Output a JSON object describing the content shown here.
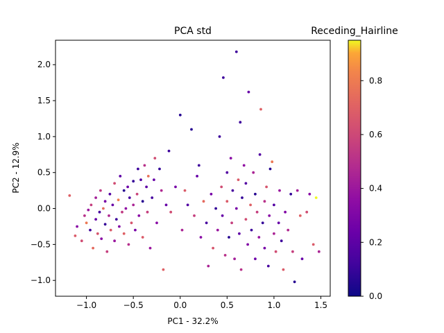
{
  "chart_data": {
    "type": "scatter",
    "title": "PCA std",
    "colorbar_label": "Receding_Hairline",
    "xlabel": "PC1 - 32.2%",
    "ylabel": "PC2 - 12.9%",
    "xlim": [
      -1.33,
      1.6
    ],
    "ylim": [
      -1.22,
      2.34
    ],
    "xticks": [
      -1.0,
      -0.5,
      0.0,
      0.5,
      1.0,
      1.5
    ],
    "xtick_labels": [
      "−1.0",
      "−0.5",
      "0.0",
      "0.5",
      "1.0",
      "1.5"
    ],
    "yticks": [
      -1.0,
      -0.5,
      0.0,
      0.5,
      1.0,
      1.5,
      2.0
    ],
    "ytick_labels": [
      "−1.0",
      "−0.5",
      "0.0",
      "0.5",
      "1.0",
      "1.5",
      "2.0"
    ],
    "colorbar_range": [
      0.0,
      0.95
    ],
    "colorbar_ticks": [
      0.0,
      0.2,
      0.4,
      0.6,
      0.8
    ],
    "colorbar_tick_labels": [
      "0.0",
      "0.2",
      "0.4",
      "0.6",
      "0.8"
    ],
    "colormap": "plasma",
    "grid": false,
    "point_count_estimate": 850,
    "series": [
      {
        "points": [
          [
            -1.18,
            0.18,
            0.62
          ],
          [
            -1.12,
            -0.38,
            0.6
          ],
          [
            -1.1,
            -0.25,
            0.3
          ],
          [
            -1.05,
            -0.45,
            0.55
          ],
          [
            -1.02,
            -0.1,
            0.45
          ],
          [
            -1.0,
            -0.2,
            0.7
          ],
          [
            -0.98,
            -0.02,
            0.35
          ],
          [
            -0.96,
            -0.3,
            0.1
          ],
          [
            -0.95,
            0.05,
            0.5
          ],
          [
            -0.93,
            -0.55,
            0.65
          ],
          [
            -0.9,
            -0.15,
            0.2
          ],
          [
            -0.9,
            0.15,
            0.38
          ],
          [
            -0.88,
            -0.35,
            0.58
          ],
          [
            -0.86,
            -0.05,
            0.12
          ],
          [
            -0.85,
            0.25,
            0.48
          ],
          [
            -0.84,
            -0.42,
            0.3
          ],
          [
            -0.82,
            0.0,
            0.66
          ],
          [
            -0.8,
            -0.22,
            0.08
          ],
          [
            -0.8,
            0.1,
            0.25
          ],
          [
            -0.78,
            -0.6,
            0.5
          ],
          [
            -0.76,
            -0.1,
            0.42
          ],
          [
            -0.75,
            0.2,
            0.15
          ],
          [
            -0.74,
            -0.3,
            0.6
          ],
          [
            -0.72,
            0.05,
            0.2
          ],
          [
            -0.7,
            -0.45,
            0.35
          ],
          [
            -0.7,
            0.35,
            0.55
          ],
          [
            -0.68,
            -0.15,
            0.1
          ],
          [
            -0.66,
            0.12,
            0.72
          ],
          [
            -0.65,
            -0.25,
            0.28
          ],
          [
            -0.64,
            0.45,
            0.18
          ],
          [
            -0.62,
            -0.05,
            0.48
          ],
          [
            -0.6,
            0.25,
            0.05
          ],
          [
            -0.6,
            -0.35,
            0.62
          ],
          [
            -0.58,
            0.0,
            0.32
          ],
          [
            -0.56,
            0.3,
            0.22
          ],
          [
            -0.55,
            -0.5,
            0.44
          ],
          [
            -0.54,
            0.15,
            0.12
          ],
          [
            -0.52,
            -0.2,
            0.58
          ],
          [
            -0.5,
            0.38,
            0.08
          ],
          [
            -0.5,
            0.05,
            0.4
          ],
          [
            -0.48,
            -0.3,
            0.25
          ],
          [
            -0.46,
            0.2,
            0.52
          ],
          [
            -0.45,
            0.55,
            0.1
          ],
          [
            -0.44,
            -0.1,
            0.3
          ],
          [
            -0.42,
            0.4,
            0.15
          ],
          [
            -0.4,
            -0.4,
            0.6
          ],
          [
            -0.4,
            0.1,
            0.05
          ],
          [
            -0.38,
            0.6,
            0.45
          ],
          [
            -0.36,
            0.3,
            0.18
          ],
          [
            -0.35,
            -0.05,
            0.5
          ],
          [
            -0.34,
            0.45,
            0.68
          ],
          [
            -0.32,
            -0.55,
            0.35
          ],
          [
            -0.3,
            0.15,
            0.12
          ],
          [
            -0.28,
            0.4,
            0.2
          ],
          [
            -0.27,
            0.7,
            0.55
          ],
          [
            -0.25,
            -0.2,
            0.3
          ],
          [
            -0.22,
            0.55,
            0.08
          ],
          [
            -0.2,
            0.25,
            0.42
          ],
          [
            -0.18,
            -0.85,
            0.62
          ],
          [
            -0.15,
            0.05,
            0.2
          ],
          [
            -0.12,
            0.8,
            0.1
          ],
          [
            -0.1,
            -0.05,
            0.55
          ],
          [
            -0.05,
            0.3,
            0.25
          ],
          [
            0.0,
            1.3,
            0.05
          ],
          [
            0.02,
            -0.3,
            0.4
          ],
          [
            0.05,
            0.25,
            0.6
          ],
          [
            0.08,
            0.05,
            0.15
          ],
          [
            0.12,
            1.1,
            0.05
          ],
          [
            0.15,
            -0.1,
            0.5
          ],
          [
            0.18,
            0.45,
            0.2
          ],
          [
            0.2,
            0.6,
            0.1
          ],
          [
            0.22,
            -0.4,
            0.3
          ],
          [
            0.25,
            0.1,
            0.65
          ],
          [
            0.28,
            -0.2,
            0.12
          ],
          [
            0.3,
            -0.8,
            0.4
          ],
          [
            0.33,
            0.2,
            0.25
          ],
          [
            0.35,
            -0.55,
            0.58
          ],
          [
            0.38,
            0.0,
            0.08
          ],
          [
            0.4,
            -0.3,
            0.35
          ],
          [
            0.42,
            1.0,
            0.1
          ],
          [
            0.44,
            0.3,
            0.55
          ],
          [
            0.45,
            -0.1,
            0.2
          ],
          [
            0.46,
            1.82,
            0.1
          ],
          [
            0.48,
            -0.65,
            0.45
          ],
          [
            0.5,
            0.5,
            0.15
          ],
          [
            0.5,
            0.1,
            0.6
          ],
          [
            0.52,
            -0.4,
            0.05
          ],
          [
            0.54,
            0.7,
            0.3
          ],
          [
            0.55,
            -0.2,
            0.5
          ],
          [
            0.56,
            0.25,
            0.12
          ],
          [
            0.58,
            -0.7,
            0.38
          ],
          [
            0.6,
            2.18,
            0.1
          ],
          [
            0.6,
            0.0,
            0.25
          ],
          [
            0.62,
            0.4,
            0.6
          ],
          [
            0.63,
            -0.35,
            0.18
          ],
          [
            0.64,
            1.2,
            0.1
          ],
          [
            0.65,
            -0.85,
            0.45
          ],
          [
            0.66,
            0.15,
            0.08
          ],
          [
            0.68,
            0.6,
            0.32
          ],
          [
            0.7,
            -0.15,
            0.55
          ],
          [
            0.7,
            0.35,
            0.15
          ],
          [
            0.72,
            -0.5,
            0.28
          ],
          [
            0.73,
            1.62,
            0.2
          ],
          [
            0.75,
            0.05,
            0.62
          ],
          [
            0.76,
            -0.3,
            0.1
          ],
          [
            0.78,
            0.5,
            0.4
          ],
          [
            0.8,
            -0.7,
            0.22
          ],
          [
            0.8,
            0.2,
            0.05
          ],
          [
            0.82,
            -0.05,
            0.5
          ],
          [
            0.84,
            -0.4,
            0.35
          ],
          [
            0.85,
            0.75,
            0.15
          ],
          [
            0.86,
            1.38,
            0.62
          ],
          [
            0.88,
            -0.2,
            0.08
          ],
          [
            0.9,
            0.1,
            0.45
          ],
          [
            0.9,
            -0.55,
            0.25
          ],
          [
            0.92,
            0.3,
            0.58
          ],
          [
            0.94,
            -0.8,
            0.12
          ],
          [
            0.95,
            -0.1,
            0.3
          ],
          [
            0.96,
            0.55,
            0.05
          ],
          [
            0.98,
            0.65,
            0.7
          ],
          [
            1.0,
            -0.35,
            0.4
          ],
          [
            1.0,
            0.05,
            0.15
          ],
          [
            1.02,
            -0.6,
            0.55
          ],
          [
            1.05,
            -0.2,
            0.2
          ],
          [
            1.06,
            0.25,
            0.35
          ],
          [
            1.08,
            -0.45,
            0.1
          ],
          [
            1.1,
            -0.85,
            0.6
          ],
          [
            1.12,
            -0.05,
            0.28
          ],
          [
            1.15,
            -0.3,
            0.42
          ],
          [
            1.18,
            0.2,
            0.08
          ],
          [
            1.2,
            -0.6,
            0.5
          ],
          [
            1.22,
            -1.02,
            0.05
          ],
          [
            1.25,
            0.25,
            0.38
          ],
          [
            1.28,
            -0.1,
            0.62
          ],
          [
            1.3,
            -0.7,
            0.2
          ],
          [
            1.35,
            -0.05,
            0.55
          ],
          [
            1.38,
            0.2,
            0.3
          ],
          [
            1.42,
            -0.5,
            0.6
          ],
          [
            1.45,
            0.15,
            0.95
          ],
          [
            1.48,
            -0.6,
            0.4
          ]
        ]
      }
    ]
  }
}
